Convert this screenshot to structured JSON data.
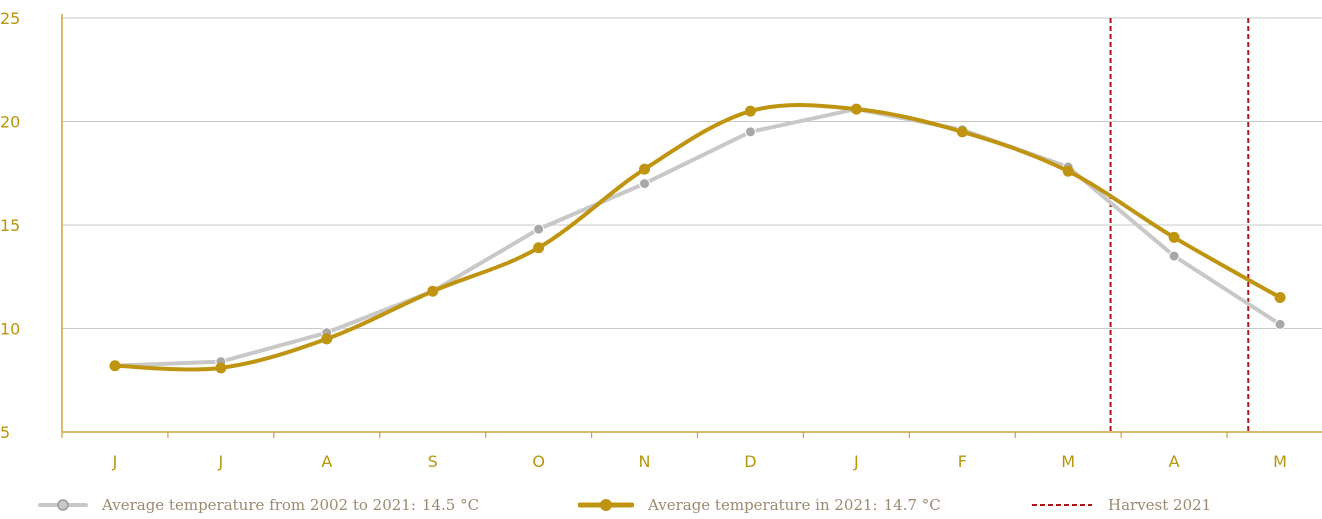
{
  "chart_data": {
    "type": "line",
    "categories": [
      "J",
      "J",
      "A",
      "S",
      "O",
      "N",
      "D",
      "J",
      "F",
      "M",
      "A",
      "M"
    ],
    "ylim": [
      5,
      25
    ],
    "yticks": [
      5,
      10,
      15,
      20,
      25
    ],
    "grid": true,
    "legend_position": "bottom",
    "series": [
      {
        "name": "Average temperature from 2002 to 2021:",
        "summary": "14.5 °C",
        "color": "#c8c8c8",
        "marker_color": "#a8a8a8",
        "smooth": false,
        "values": [
          8.2,
          8.4,
          9.8,
          11.8,
          14.8,
          17.0,
          19.5,
          20.6,
          19.6,
          17.8,
          13.5,
          10.2
        ]
      },
      {
        "name": "Average temperature in 2021:",
        "summary": "14.7 °C",
        "color": "#bf9410",
        "marker_color": "#bf9410",
        "smooth": true,
        "values": [
          8.2,
          8.1,
          9.5,
          11.8,
          13.9,
          17.7,
          20.5,
          20.6,
          19.5,
          17.6,
          14.4,
          11.5
        ]
      }
    ],
    "harvest": {
      "name": "Harvest 2021",
      "color": "#b0151a",
      "category_indices": [
        9.4,
        10.7
      ]
    }
  }
}
